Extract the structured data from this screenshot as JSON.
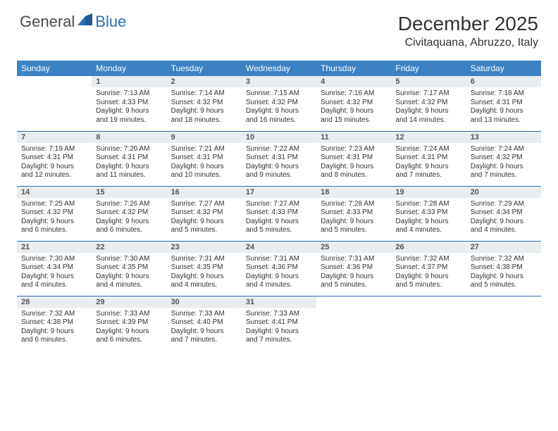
{
  "logo": {
    "text_general": "General",
    "text_blue": "Blue"
  },
  "title": "December 2025",
  "location": "Civitaquana, Abruzzo, Italy",
  "colors": {
    "header_bg": "#3b82c4",
    "header_fg": "#ffffff",
    "daynum_bg": "#e9edf0",
    "rule": "#2b6fb0",
    "text": "#333333"
  },
  "day_headers": [
    "Sunday",
    "Monday",
    "Tuesday",
    "Wednesday",
    "Thursday",
    "Friday",
    "Saturday"
  ],
  "weeks": [
    [
      {
        "n": "",
        "sr": "",
        "ss": "",
        "dl": ""
      },
      {
        "n": "1",
        "sr": "Sunrise: 7:13 AM",
        "ss": "Sunset: 4:33 PM",
        "dl": "Daylight: 9 hours and 19 minutes."
      },
      {
        "n": "2",
        "sr": "Sunrise: 7:14 AM",
        "ss": "Sunset: 4:32 PM",
        "dl": "Daylight: 9 hours and 18 minutes."
      },
      {
        "n": "3",
        "sr": "Sunrise: 7:15 AM",
        "ss": "Sunset: 4:32 PM",
        "dl": "Daylight: 9 hours and 16 minutes."
      },
      {
        "n": "4",
        "sr": "Sunrise: 7:16 AM",
        "ss": "Sunset: 4:32 PM",
        "dl": "Daylight: 9 hours and 15 minutes."
      },
      {
        "n": "5",
        "sr": "Sunrise: 7:17 AM",
        "ss": "Sunset: 4:32 PM",
        "dl": "Daylight: 9 hours and 14 minutes."
      },
      {
        "n": "6",
        "sr": "Sunrise: 7:18 AM",
        "ss": "Sunset: 4:31 PM",
        "dl": "Daylight: 9 hours and 13 minutes."
      }
    ],
    [
      {
        "n": "7",
        "sr": "Sunrise: 7:19 AM",
        "ss": "Sunset: 4:31 PM",
        "dl": "Daylight: 9 hours and 12 minutes."
      },
      {
        "n": "8",
        "sr": "Sunrise: 7:20 AM",
        "ss": "Sunset: 4:31 PM",
        "dl": "Daylight: 9 hours and 11 minutes."
      },
      {
        "n": "9",
        "sr": "Sunrise: 7:21 AM",
        "ss": "Sunset: 4:31 PM",
        "dl": "Daylight: 9 hours and 10 minutes."
      },
      {
        "n": "10",
        "sr": "Sunrise: 7:22 AM",
        "ss": "Sunset: 4:31 PM",
        "dl": "Daylight: 9 hours and 9 minutes."
      },
      {
        "n": "11",
        "sr": "Sunrise: 7:23 AM",
        "ss": "Sunset: 4:31 PM",
        "dl": "Daylight: 9 hours and 8 minutes."
      },
      {
        "n": "12",
        "sr": "Sunrise: 7:24 AM",
        "ss": "Sunset: 4:31 PM",
        "dl": "Daylight: 9 hours and 7 minutes."
      },
      {
        "n": "13",
        "sr": "Sunrise: 7:24 AM",
        "ss": "Sunset: 4:32 PM",
        "dl": "Daylight: 9 hours and 7 minutes."
      }
    ],
    [
      {
        "n": "14",
        "sr": "Sunrise: 7:25 AM",
        "ss": "Sunset: 4:32 PM",
        "dl": "Daylight: 9 hours and 6 minutes."
      },
      {
        "n": "15",
        "sr": "Sunrise: 7:26 AM",
        "ss": "Sunset: 4:32 PM",
        "dl": "Daylight: 9 hours and 6 minutes."
      },
      {
        "n": "16",
        "sr": "Sunrise: 7:27 AM",
        "ss": "Sunset: 4:32 PM",
        "dl": "Daylight: 9 hours and 5 minutes."
      },
      {
        "n": "17",
        "sr": "Sunrise: 7:27 AM",
        "ss": "Sunset: 4:33 PM",
        "dl": "Daylight: 9 hours and 5 minutes."
      },
      {
        "n": "18",
        "sr": "Sunrise: 7:28 AM",
        "ss": "Sunset: 4:33 PM",
        "dl": "Daylight: 9 hours and 5 minutes."
      },
      {
        "n": "19",
        "sr": "Sunrise: 7:28 AM",
        "ss": "Sunset: 4:33 PM",
        "dl": "Daylight: 9 hours and 4 minutes."
      },
      {
        "n": "20",
        "sr": "Sunrise: 7:29 AM",
        "ss": "Sunset: 4:34 PM",
        "dl": "Daylight: 9 hours and 4 minutes."
      }
    ],
    [
      {
        "n": "21",
        "sr": "Sunrise: 7:30 AM",
        "ss": "Sunset: 4:34 PM",
        "dl": "Daylight: 9 hours and 4 minutes."
      },
      {
        "n": "22",
        "sr": "Sunrise: 7:30 AM",
        "ss": "Sunset: 4:35 PM",
        "dl": "Daylight: 9 hours and 4 minutes."
      },
      {
        "n": "23",
        "sr": "Sunrise: 7:31 AM",
        "ss": "Sunset: 4:35 PM",
        "dl": "Daylight: 9 hours and 4 minutes."
      },
      {
        "n": "24",
        "sr": "Sunrise: 7:31 AM",
        "ss": "Sunset: 4:36 PM",
        "dl": "Daylight: 9 hours and 4 minutes."
      },
      {
        "n": "25",
        "sr": "Sunrise: 7:31 AM",
        "ss": "Sunset: 4:36 PM",
        "dl": "Daylight: 9 hours and 5 minutes."
      },
      {
        "n": "26",
        "sr": "Sunrise: 7:32 AM",
        "ss": "Sunset: 4:37 PM",
        "dl": "Daylight: 9 hours and 5 minutes."
      },
      {
        "n": "27",
        "sr": "Sunrise: 7:32 AM",
        "ss": "Sunset: 4:38 PM",
        "dl": "Daylight: 9 hours and 5 minutes."
      }
    ],
    [
      {
        "n": "28",
        "sr": "Sunrise: 7:32 AM",
        "ss": "Sunset: 4:38 PM",
        "dl": "Daylight: 9 hours and 6 minutes."
      },
      {
        "n": "29",
        "sr": "Sunrise: 7:33 AM",
        "ss": "Sunset: 4:39 PM",
        "dl": "Daylight: 9 hours and 6 minutes."
      },
      {
        "n": "30",
        "sr": "Sunrise: 7:33 AM",
        "ss": "Sunset: 4:40 PM",
        "dl": "Daylight: 9 hours and 7 minutes."
      },
      {
        "n": "31",
        "sr": "Sunrise: 7:33 AM",
        "ss": "Sunset: 4:41 PM",
        "dl": "Daylight: 9 hours and 7 minutes."
      },
      {
        "n": "",
        "sr": "",
        "ss": "",
        "dl": ""
      },
      {
        "n": "",
        "sr": "",
        "ss": "",
        "dl": ""
      },
      {
        "n": "",
        "sr": "",
        "ss": "",
        "dl": ""
      }
    ]
  ]
}
